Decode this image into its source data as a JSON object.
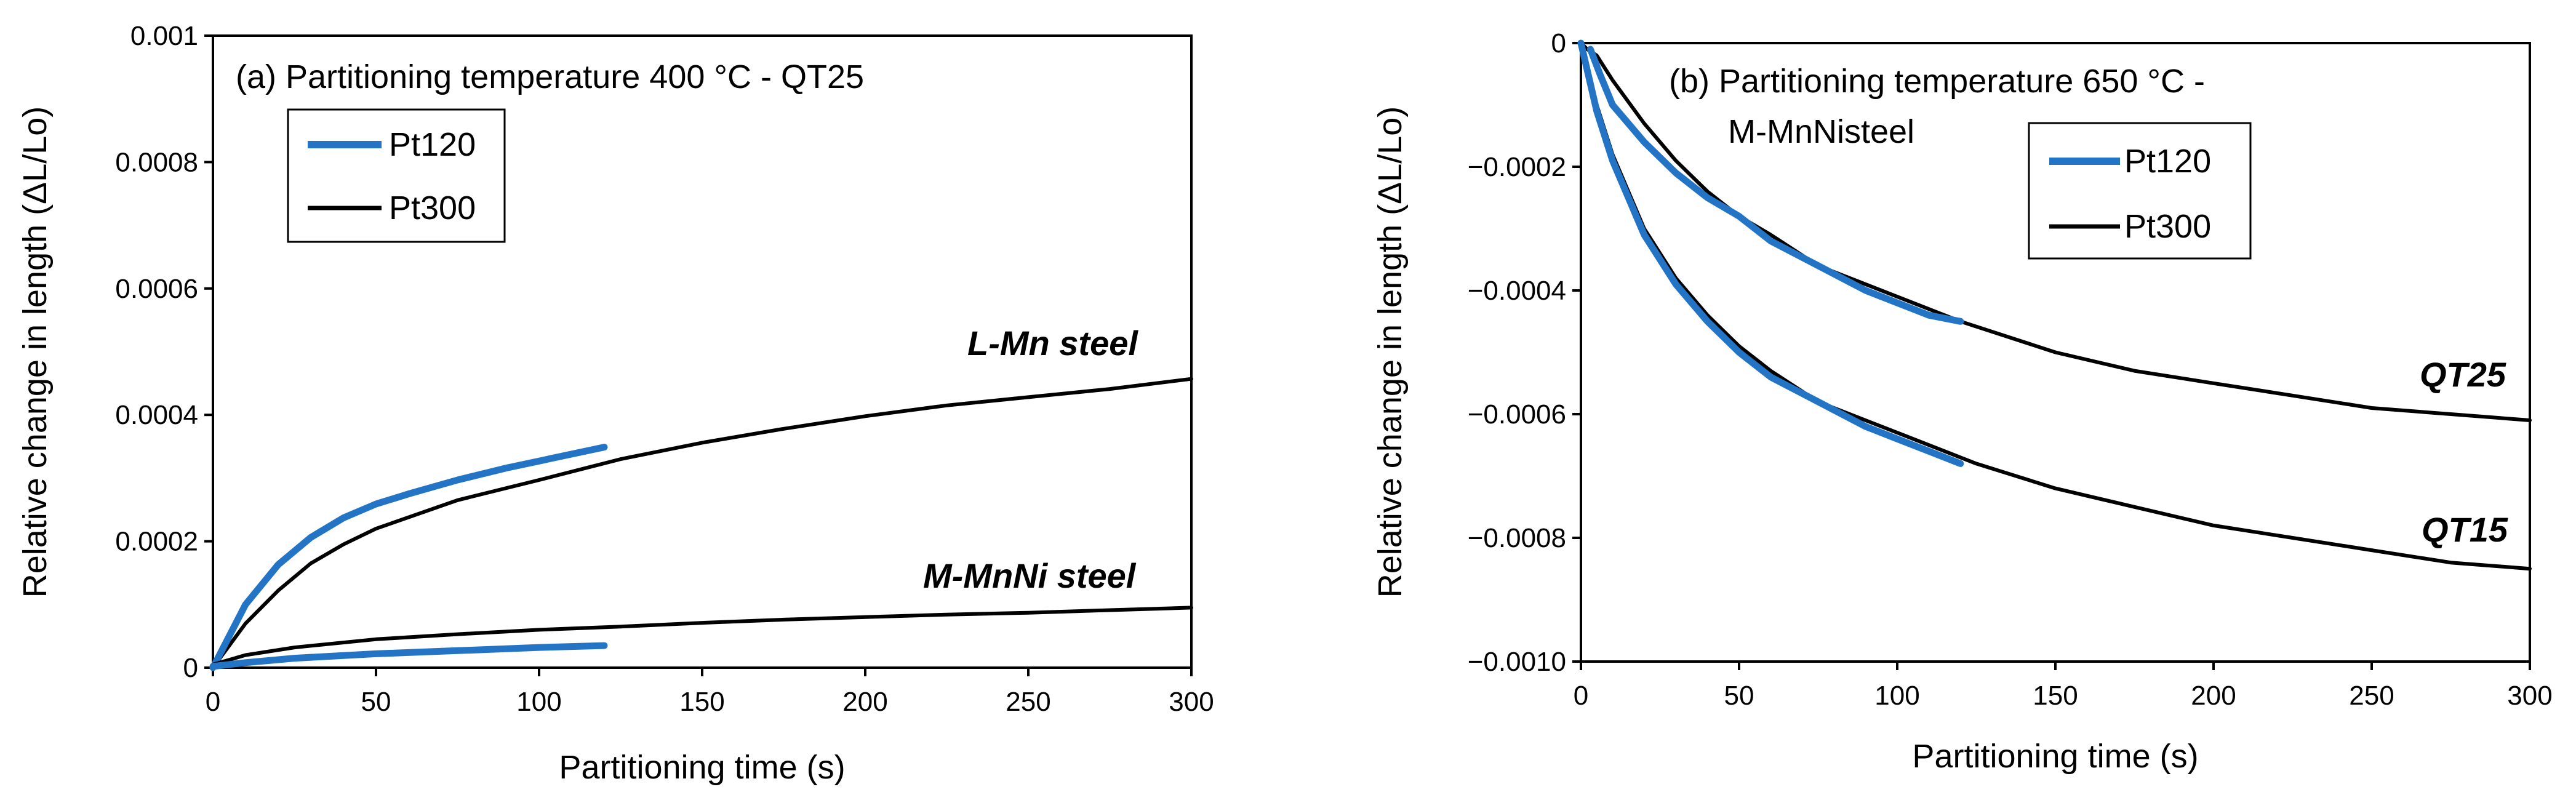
{
  "chart_data": [
    {
      "type": "line",
      "panel_title": "(a) Partitioning temperature 400 °C - QT25",
      "xlabel": "Partitioning time (s)",
      "ylabel": "Relative change in length (ΔL/Lo)",
      "xlim": [
        0,
        300
      ],
      "ylim": [
        0,
        0.001
      ],
      "xticks": [
        "0",
        "50",
        "100",
        "150",
        "200",
        "250",
        "300"
      ],
      "yticks": [
        "0",
        "0.0002",
        "0.0004",
        "0.0006",
        "0.0008",
        "0.001"
      ],
      "legend": [
        {
          "name": "Pt120",
          "color": "#2474c6"
        },
        {
          "name": "Pt300",
          "color": "#000000"
        }
      ],
      "annotations": [
        "L-Mn steel",
        "M-MnNi steel"
      ],
      "series": [
        {
          "name": "Pt300",
          "group": "L-Mn steel",
          "color": "#000000",
          "points": [
            [
              0,
              0
            ],
            [
              5,
              3.5e-05
            ],
            [
              10,
              7e-05
            ],
            [
              20,
              0.000122
            ],
            [
              30,
              0.000165
            ],
            [
              40,
              0.000195
            ],
            [
              50,
              0.00022
            ],
            [
              60,
              0.000238
            ],
            [
              75,
              0.000265
            ],
            [
              100,
              0.000297
            ],
            [
              125,
              0.00033
            ],
            [
              150,
              0.000356
            ],
            [
              175,
              0.000378
            ],
            [
              200,
              0.000398
            ],
            [
              225,
              0.000415
            ],
            [
              250,
              0.000428
            ],
            [
              275,
              0.000441
            ],
            [
              300,
              0.000457
            ]
          ]
        },
        {
          "name": "Pt120",
          "group": "L-Mn steel",
          "color": "#2474c6",
          "points": [
            [
              0,
              0
            ],
            [
              5,
              5e-05
            ],
            [
              10,
              0.0001
            ],
            [
              20,
              0.000163
            ],
            [
              30,
              0.000206
            ],
            [
              40,
              0.000237
            ],
            [
              50,
              0.000259
            ],
            [
              60,
              0.000275
            ],
            [
              75,
              0.000297
            ],
            [
              90,
              0.000316
            ],
            [
              100,
              0.000327
            ],
            [
              110,
              0.000338
            ],
            [
              120,
              0.000349
            ]
          ]
        },
        {
          "name": "Pt300",
          "group": "M-MnNi steel",
          "color": "#000000",
          "points": [
            [
              0,
              5e-06
            ],
            [
              10,
              2e-05
            ],
            [
              25,
              3.2e-05
            ],
            [
              50,
              4.5e-05
            ],
            [
              75,
              5.3e-05
            ],
            [
              100,
              6e-05
            ],
            [
              125,
              6.5e-05
            ],
            [
              150,
              7.1e-05
            ],
            [
              175,
              7.6e-05
            ],
            [
              200,
              8e-05
            ],
            [
              225,
              8.4e-05
            ],
            [
              250,
              8.7e-05
            ],
            [
              275,
              9.1e-05
            ],
            [
              300,
              9.5e-05
            ]
          ]
        },
        {
          "name": "Pt120",
          "group": "M-MnNi steel",
          "color": "#2474c6",
          "points": [
            [
              0,
              2e-06
            ],
            [
              10,
              8e-06
            ],
            [
              25,
              1.5e-05
            ],
            [
              50,
              2.2e-05
            ],
            [
              75,
              2.7e-05
            ],
            [
              100,
              3.2e-05
            ],
            [
              120,
              3.5e-05
            ]
          ]
        }
      ]
    },
    {
      "type": "line",
      "panel_title": "(b) Partitioning temperature 650 °C -",
      "panel_title_line2": "M-MnNisteel",
      "xlabel": "Partitioning time (s)",
      "ylabel": "Relative change in length (ΔL/Lo)",
      "xlim": [
        0,
        300
      ],
      "ylim": [
        -0.001,
        0
      ],
      "xticks": [
        "0",
        "50",
        "100",
        "150",
        "200",
        "250",
        "300"
      ],
      "yticks": [
        "0",
        "−0.0002",
        "−0.0004",
        "−0.0006",
        "−0.0008",
        "−0.0010"
      ],
      "legend": [
        {
          "name": "Pt120",
          "color": "#2474c6"
        },
        {
          "name": "Pt300",
          "color": "#000000"
        }
      ],
      "annotations": [
        "QT25",
        "QT15"
      ],
      "series": [
        {
          "name": "Pt300",
          "group": "QT25",
          "color": "#000000",
          "points": [
            [
              0,
              0
            ],
            [
              2,
              -1e-05
            ],
            [
              5,
              -2e-05
            ],
            [
              10,
              -6e-05
            ],
            [
              20,
              -0.00013
            ],
            [
              30,
              -0.00019
            ],
            [
              40,
              -0.00024
            ],
            [
              50,
              -0.00028
            ],
            [
              60,
              -0.00031
            ],
            [
              75,
              -0.00036
            ],
            [
              90,
              -0.00039
            ],
            [
              100,
              -0.00041
            ],
            [
              120,
              -0.00045
            ],
            [
              150,
              -0.0005
            ],
            [
              175,
              -0.00053
            ],
            [
              200,
              -0.00055
            ],
            [
              225,
              -0.00057
            ],
            [
              250,
              -0.00059
            ],
            [
              275,
              -0.0006
            ],
            [
              300,
              -0.00061
            ]
          ]
        },
        {
          "name": "Pt120",
          "group": "QT25",
          "color": "#2474c6",
          "points": [
            [
              3,
              -1e-05
            ],
            [
              6,
              -5e-05
            ],
            [
              10,
              -0.0001
            ],
            [
              20,
              -0.00016
            ],
            [
              30,
              -0.00021
            ],
            [
              40,
              -0.00025
            ],
            [
              50,
              -0.00028
            ],
            [
              60,
              -0.00032
            ],
            [
              75,
              -0.00036
            ],
            [
              90,
              -0.0004
            ],
            [
              100,
              -0.00042
            ],
            [
              110,
              -0.00044
            ],
            [
              120,
              -0.00045
            ]
          ]
        },
        {
          "name": "Pt300",
          "group": "QT15",
          "color": "#000000",
          "points": [
            [
              0,
              0
            ],
            [
              5,
              -0.0001
            ],
            [
              10,
              -0.00018
            ],
            [
              20,
              -0.0003
            ],
            [
              30,
              -0.00038
            ],
            [
              40,
              -0.00044
            ],
            [
              50,
              -0.00049
            ],
            [
              60,
              -0.00053
            ],
            [
              75,
              -0.00058
            ],
            [
              100,
              -0.00063
            ],
            [
              125,
              -0.00068
            ],
            [
              150,
              -0.00072
            ],
            [
              175,
              -0.00075
            ],
            [
              200,
              -0.00078
            ],
            [
              225,
              -0.0008
            ],
            [
              250,
              -0.00082
            ],
            [
              275,
              -0.00084
            ],
            [
              300,
              -0.00085
            ]
          ]
        },
        {
          "name": "Pt120",
          "group": "QT15",
          "color": "#2474c6",
          "points": [
            [
              0,
              0
            ],
            [
              5,
              -0.00011
            ],
            [
              10,
              -0.00019
            ],
            [
              20,
              -0.00031
            ],
            [
              30,
              -0.00039
            ],
            [
              40,
              -0.00045
            ],
            [
              50,
              -0.0005
            ],
            [
              60,
              -0.00054
            ],
            [
              75,
              -0.00058
            ],
            [
              90,
              -0.00062
            ],
            [
              100,
              -0.00064
            ],
            [
              110,
              -0.00066
            ],
            [
              120,
              -0.00068
            ]
          ]
        }
      ]
    }
  ]
}
